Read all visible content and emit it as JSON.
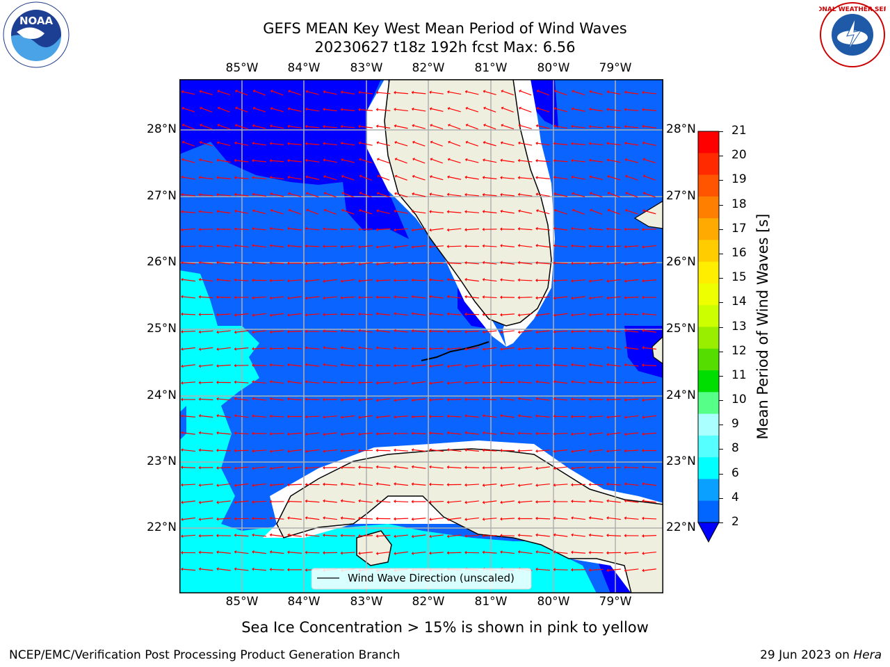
{
  "header": {
    "title_line1": "GEFS MEAN Key West Mean Period of Wind Waves",
    "title_line2": "20230627 t18z 192h fcst   Max: 6.56"
  },
  "logos": {
    "left": {
      "icon": "noaa-logo",
      "text": "NOAA"
    },
    "right": {
      "icon": "nws-logo",
      "ring_text": "NATIONAL WEATHER SERVICE"
    }
  },
  "map": {
    "lon_ticks": [
      "85°W",
      "84°W",
      "83°W",
      "82°W",
      "81°W",
      "80°W",
      "79°W"
    ],
    "lat_ticks": [
      "28°N",
      "27°N",
      "26°N",
      "25°N",
      "24°N",
      "23°N",
      "22°N"
    ],
    "legend_label": "Wind Wave Direction (unscaled)",
    "colors": {
      "land": "#efefdf",
      "level_2_4": "#0a64ff",
      "level_under_2": "#0000ff",
      "level_4_6": "#00ffff",
      "arrow": "#ff0000"
    }
  },
  "colorbar": {
    "label": "Mean Period of Wind Waves [s]",
    "ticks": [
      "21",
      "20",
      "19",
      "18",
      "17",
      "16",
      "15",
      "14",
      "13",
      "12",
      "11",
      "10",
      "9",
      "8",
      "6",
      "4",
      "2"
    ],
    "colors": [
      "#ff0000",
      "#ff2a00",
      "#ff5500",
      "#ff8000",
      "#ffaa00",
      "#ffcc00",
      "#ffee00",
      "#eeff00",
      "#ccff00",
      "#99ee00",
      "#55dd00",
      "#00dd00",
      "#55ff88",
      "#aaffff",
      "#55ffff",
      "#00ffff",
      "#0aa0ff",
      "#0066ff"
    ],
    "extend_color": "#0000ff"
  },
  "notes": {
    "sea_ice": "Sea Ice Concentration > 15% is shown in pink to yellow",
    "credit": "NCEP/EMC/Verification Post Processing Product Generation Branch",
    "date": "29 Jun 2023 on",
    "system": "Hera"
  }
}
